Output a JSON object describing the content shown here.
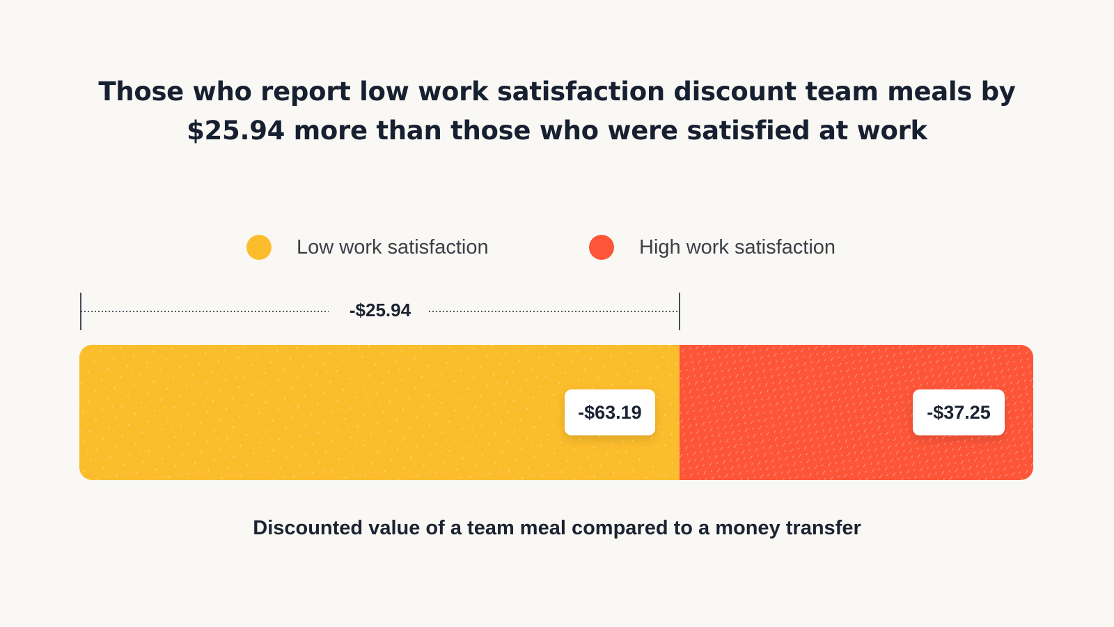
{
  "title_line1": "Those who report low work satisfaction discount team meals by",
  "title_line2": "$25.94 more than those who were satisfied at work",
  "colors": {
    "background": "#f9f8f4",
    "low": "#fbbd2c",
    "high": "#fd5538",
    "text": "#1b2231"
  },
  "chart_data": {
    "type": "bar",
    "orientation": "horizontal-stacked",
    "title": "Those who report low work satisfaction discount team meals by $25.94 more than those who were satisfied at work",
    "xlabel": "Discounted value of a team meal compared to a money transfer",
    "series": [
      {
        "name": "Low work satisfaction",
        "value": -63.19,
        "label": "-$63.19",
        "color": "#fbbd2c"
      },
      {
        "name": "High work satisfaction",
        "value": -37.25,
        "label": "-$37.25",
        "color": "#fd5538"
      }
    ],
    "difference": {
      "value": -25.94,
      "label": "-$25.94"
    },
    "legend_position": "top-center"
  },
  "caption": "Discounted value of a team meal compared to a money transfer"
}
